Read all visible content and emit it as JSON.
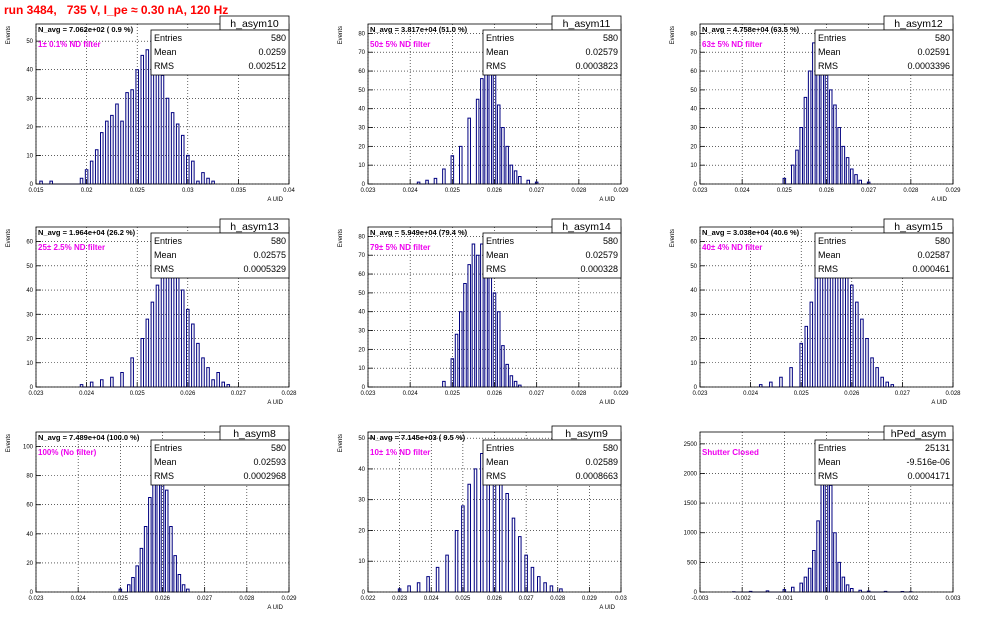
{
  "page_title": "run 3484,   735 V, I_pe ≈ 0.30 nA, 120 Hz",
  "colors": {
    "title": "#ff0000",
    "annotation": "#ee00ee",
    "histogram": "#000080",
    "frame": "#000000"
  },
  "chart_data": [
    {
      "type": "histogram",
      "name": "h_asym10",
      "stats": {
        "entries_label": "Entries",
        "entries": "580",
        "mean_label": "Mean",
        "mean": "0.0259",
        "rms_label": "RMS",
        "rms": "0.002512"
      },
      "n_avg_text": "N_avg = 7.062e+02 ( 0.9 %)",
      "annotation": "1± 0.1% ND filter",
      "ylabel": "Events",
      "xlabel": "A UID",
      "xlim": [
        0.015,
        0.04
      ],
      "xticks": [
        "0.015",
        "0.02",
        "0.025",
        "0.03",
        "0.035",
        "0.04"
      ],
      "ylim": [
        0,
        56
      ],
      "yticks": [
        "0",
        "10",
        "20",
        "30",
        "40",
        "50"
      ],
      "grid": true,
      "bins": [
        [
          0.0155,
          1
        ],
        [
          0.0165,
          1
        ],
        [
          0.0195,
          2
        ],
        [
          0.02,
          5
        ],
        [
          0.0205,
          8
        ],
        [
          0.021,
          12
        ],
        [
          0.0215,
          18
        ],
        [
          0.022,
          22
        ],
        [
          0.0225,
          24
        ],
        [
          0.023,
          28
        ],
        [
          0.0235,
          22
        ],
        [
          0.024,
          32
        ],
        [
          0.0245,
          33
        ],
        [
          0.025,
          40
        ],
        [
          0.0255,
          45
        ],
        [
          0.026,
          47
        ],
        [
          0.0265,
          52
        ],
        [
          0.027,
          42
        ],
        [
          0.0275,
          38
        ],
        [
          0.028,
          30
        ],
        [
          0.0285,
          25
        ],
        [
          0.029,
          21
        ],
        [
          0.0295,
          17
        ],
        [
          0.03,
          10
        ],
        [
          0.0305,
          8
        ],
        [
          0.031,
          1
        ],
        [
          0.0315,
          4
        ],
        [
          0.032,
          2
        ],
        [
          0.0325,
          1
        ]
      ]
    },
    {
      "type": "histogram",
      "name": "h_asym11",
      "stats": {
        "entries_label": "Entries",
        "entries": "580",
        "mean_label": "Mean",
        "mean": "0.02579",
        "rms_label": "RMS",
        "rms": "0.0003823"
      },
      "n_avg_text": "N_avg = 3.817e+04 (51.0 %)",
      "annotation": "50± 5% ND filter",
      "ylabel": "Events",
      "xlabel": "A UID",
      "xlim": [
        0.023,
        0.029
      ],
      "xticks": [
        "0.023",
        "0.024",
        "0.025",
        "0.026",
        "0.027",
        "0.028",
        "0.029"
      ],
      "ylim": [
        0,
        85
      ],
      "yticks": [
        "0",
        "10",
        "20",
        "30",
        "40",
        "50",
        "60",
        "70",
        "80"
      ],
      "grid": true,
      "bins": [
        [
          0.0242,
          1
        ],
        [
          0.0244,
          2
        ],
        [
          0.0246,
          3
        ],
        [
          0.0248,
          8
        ],
        [
          0.025,
          15
        ],
        [
          0.0252,
          20
        ],
        [
          0.0254,
          35
        ],
        [
          0.0256,
          45
        ],
        [
          0.0257,
          56
        ],
        [
          0.0258,
          75
        ],
        [
          0.0259,
          80
        ],
        [
          0.026,
          60
        ],
        [
          0.0261,
          42
        ],
        [
          0.0262,
          30
        ],
        [
          0.0263,
          20
        ],
        [
          0.0264,
          10
        ],
        [
          0.0265,
          7
        ],
        [
          0.0266,
          4
        ],
        [
          0.0268,
          2
        ],
        [
          0.027,
          1
        ]
      ]
    },
    {
      "type": "histogram",
      "name": "h_asym12",
      "stats": {
        "entries_label": "Entries",
        "entries": "580",
        "mean_label": "Mean",
        "mean": "0.02591",
        "rms_label": "RMS",
        "rms": "0.0003396"
      },
      "n_avg_text": "N_avg = 4.758e+04 (63.5 %)",
      "annotation": "63± 5% ND filter",
      "ylabel": "Events",
      "xlabel": "A UID",
      "xlim": [
        0.023,
        0.029
      ],
      "xticks": [
        "0.023",
        "0.024",
        "0.025",
        "0.026",
        "0.027",
        "0.028",
        "0.029"
      ],
      "ylim": [
        0,
        85
      ],
      "yticks": [
        "0",
        "10",
        "20",
        "30",
        "40",
        "50",
        "60",
        "70",
        "80"
      ],
      "grid": true,
      "bins": [
        [
          0.025,
          3
        ],
        [
          0.0252,
          10
        ],
        [
          0.0253,
          18
        ],
        [
          0.0254,
          30
        ],
        [
          0.0255,
          46
        ],
        [
          0.0256,
          60
        ],
        [
          0.0257,
          75
        ],
        [
          0.0258,
          80
        ],
        [
          0.0259,
          72
        ],
        [
          0.026,
          62
        ],
        [
          0.0261,
          50
        ],
        [
          0.0262,
          42
        ],
        [
          0.0263,
          30
        ],
        [
          0.0264,
          20
        ],
        [
          0.0265,
          14
        ],
        [
          0.0266,
          8
        ],
        [
          0.0267,
          5
        ],
        [
          0.0268,
          2
        ],
        [
          0.027,
          1
        ]
      ]
    },
    {
      "type": "histogram",
      "name": "h_asym13",
      "stats": {
        "entries_label": "Entries",
        "entries": "580",
        "mean_label": "Mean",
        "mean": "0.02575",
        "rms_label": "RMS",
        "rms": "0.0005329"
      },
      "n_avg_text": "N_avg = 1.964e+04 (26.2 %)",
      "annotation": "25± 2.5% ND filter",
      "ylabel": "Events",
      "xlabel": "A UID",
      "xlim": [
        0.023,
        0.028
      ],
      "xticks": [
        "0.023",
        "0.024",
        "0.025",
        "0.026",
        "0.027",
        "0.028"
      ],
      "ylim": [
        0,
        66
      ],
      "yticks": [
        "0",
        "10",
        "20",
        "30",
        "40",
        "50",
        "60"
      ],
      "grid": true,
      "bins": [
        [
          0.0239,
          1
        ],
        [
          0.0241,
          2
        ],
        [
          0.0243,
          3
        ],
        [
          0.0245,
          4
        ],
        [
          0.0247,
          6
        ],
        [
          0.0249,
          12
        ],
        [
          0.0251,
          20
        ],
        [
          0.0252,
          28
        ],
        [
          0.0253,
          35
        ],
        [
          0.0254,
          42
        ],
        [
          0.0255,
          52
        ],
        [
          0.0256,
          58
        ],
        [
          0.0257,
          62
        ],
        [
          0.0258,
          48
        ],
        [
          0.0259,
          40
        ],
        [
          0.026,
          32
        ],
        [
          0.0261,
          26
        ],
        [
          0.0262,
          18
        ],
        [
          0.0263,
          12
        ],
        [
          0.0264,
          8
        ],
        [
          0.0265,
          3
        ],
        [
          0.0266,
          6
        ],
        [
          0.0267,
          2
        ],
        [
          0.0268,
          1
        ]
      ]
    },
    {
      "type": "histogram",
      "name": "h_asym14",
      "stats": {
        "entries_label": "Entries",
        "entries": "580",
        "mean_label": "Mean",
        "mean": "0.02579",
        "rms_label": "RMS",
        "rms": "0.000328"
      },
      "n_avg_text": "N_avg = 5.949e+04 (79.4 %)",
      "annotation": "79± 5% ND filter",
      "ylabel": "Events",
      "xlabel": "A UID",
      "xlim": [
        0.023,
        0.029
      ],
      "xticks": [
        "0.023",
        "0.024",
        "0.025",
        "0.026",
        "0.027",
        "0.028",
        "0.029"
      ],
      "ylim": [
        0,
        85
      ],
      "yticks": [
        "0",
        "10",
        "20",
        "30",
        "40",
        "50",
        "60",
        "70",
        "80"
      ],
      "grid": true,
      "bins": [
        [
          0.0248,
          3
        ],
        [
          0.025,
          15
        ],
        [
          0.0251,
          28
        ],
        [
          0.0252,
          40
        ],
        [
          0.0253,
          55
        ],
        [
          0.0254,
          65
        ],
        [
          0.0255,
          76
        ],
        [
          0.0256,
          70
        ],
        [
          0.0257,
          76
        ],
        [
          0.0258,
          72
        ],
        [
          0.0259,
          60
        ],
        [
          0.026,
          50
        ],
        [
          0.0261,
          40
        ],
        [
          0.0262,
          22
        ],
        [
          0.0263,
          12
        ],
        [
          0.0264,
          6
        ],
        [
          0.0265,
          3
        ],
        [
          0.0266,
          1
        ]
      ]
    },
    {
      "type": "histogram",
      "name": "h_asym15",
      "stats": {
        "entries_label": "Entries",
        "entries": "580",
        "mean_label": "Mean",
        "mean": "0.02587",
        "rms_label": "RMS",
        "rms": "0.000461"
      },
      "n_avg_text": "N_avg = 3.038e+04 (40.6 %)",
      "annotation": "40± 4% ND filter",
      "ylabel": "Events",
      "xlabel": "A UID",
      "xlim": [
        0.023,
        0.028
      ],
      "xticks": [
        "0.023",
        "0.024",
        "0.025",
        "0.026",
        "0.027",
        "0.028"
      ],
      "ylim": [
        0,
        66
      ],
      "yticks": [
        "0",
        "10",
        "20",
        "30",
        "40",
        "50",
        "60"
      ],
      "grid": true,
      "bins": [
        [
          0.0242,
          1
        ],
        [
          0.0244,
          2
        ],
        [
          0.0246,
          4
        ],
        [
          0.0248,
          8
        ],
        [
          0.025,
          18
        ],
        [
          0.0251,
          25
        ],
        [
          0.0252,
          35
        ],
        [
          0.0253,
          45
        ],
        [
          0.0254,
          58
        ],
        [
          0.0255,
          48
        ],
        [
          0.0256,
          58
        ],
        [
          0.0257,
          62
        ],
        [
          0.0258,
          58
        ],
        [
          0.0259,
          48
        ],
        [
          0.026,
          42
        ],
        [
          0.0261,
          35
        ],
        [
          0.0262,
          28
        ],
        [
          0.0263,
          20
        ],
        [
          0.0264,
          12
        ],
        [
          0.0265,
          8
        ],
        [
          0.0266,
          4
        ],
        [
          0.0267,
          2
        ],
        [
          0.0268,
          1
        ]
      ]
    },
    {
      "type": "histogram",
      "name": "h_asym8",
      "stats": {
        "entries_label": "Entries",
        "entries": "580",
        "mean_label": "Mean",
        "mean": "0.02593",
        "rms_label": "RMS",
        "rms": "0.0002968"
      },
      "n_avg_text": "N_avg = 7.489e+04 (100.0 %)",
      "annotation": "100% (No filter)",
      "ylabel": "Events",
      "xlabel": "A UID",
      "xlim": [
        0.023,
        0.029
      ],
      "xticks": [
        "0.023",
        "0.024",
        "0.025",
        "0.026",
        "0.027",
        "0.028",
        "0.029"
      ],
      "ylim": [
        0,
        110
      ],
      "yticks": [
        "0",
        "20",
        "40",
        "60",
        "80",
        "100"
      ],
      "grid": true,
      "bins": [
        [
          0.025,
          2
        ],
        [
          0.0252,
          5
        ],
        [
          0.0253,
          10
        ],
        [
          0.0254,
          18
        ],
        [
          0.0255,
          30
        ],
        [
          0.0256,
          45
        ],
        [
          0.0257,
          65
        ],
        [
          0.0258,
          90
        ],
        [
          0.0259,
          100
        ],
        [
          0.026,
          88
        ],
        [
          0.0261,
          70
        ],
        [
          0.0262,
          45
        ],
        [
          0.0263,
          25
        ],
        [
          0.0264,
          12
        ],
        [
          0.0265,
          5
        ],
        [
          0.0266,
          2
        ]
      ]
    },
    {
      "type": "histogram",
      "name": "h_asym9",
      "stats": {
        "entries_label": "Entries",
        "entries": "580",
        "mean_label": "Mean",
        "mean": "0.02589",
        "rms_label": "RMS",
        "rms": "0.0008663"
      },
      "n_avg_text": "N_avg = 7.145e+03 ( 9.5 %)",
      "annotation": "10± 1% ND filter",
      "ylabel": "Events",
      "xlabel": "A UID",
      "xlim": [
        0.022,
        0.03
      ],
      "xticks": [
        "0.022",
        "0.023",
        "0.024",
        "0.025",
        "0.026",
        "0.027",
        "0.028",
        "0.029",
        "0.03"
      ],
      "ylim": [
        0,
        52
      ],
      "yticks": [
        "0",
        "10",
        "20",
        "30",
        "40",
        "50"
      ],
      "grid": true,
      "bins": [
        [
          0.023,
          1
        ],
        [
          0.0233,
          2
        ],
        [
          0.0236,
          3
        ],
        [
          0.0239,
          5
        ],
        [
          0.0242,
          8
        ],
        [
          0.0245,
          12
        ],
        [
          0.0248,
          20
        ],
        [
          0.025,
          28
        ],
        [
          0.0252,
          35
        ],
        [
          0.0254,
          40
        ],
        [
          0.0256,
          45
        ],
        [
          0.0258,
          47
        ],
        [
          0.026,
          40
        ],
        [
          0.0262,
          38
        ],
        [
          0.0264,
          32
        ],
        [
          0.0266,
          24
        ],
        [
          0.0268,
          18
        ],
        [
          0.027,
          12
        ],
        [
          0.0272,
          8
        ],
        [
          0.0274,
          5
        ],
        [
          0.0276,
          3
        ],
        [
          0.0278,
          2
        ],
        [
          0.0281,
          1
        ]
      ]
    },
    {
      "type": "histogram",
      "name": "hPed_asym",
      "stats": {
        "entries_label": "Entries",
        "entries": "25131",
        "mean_label": "Mean",
        "mean": "-9.516e-06",
        "rms_label": "RMS",
        "rms": "0.0004171"
      },
      "n_avg_text": "",
      "annotation": "Shutter Closed",
      "ylabel": "",
      "xlabel": "",
      "xlim": [
        -0.003,
        0.003
      ],
      "xticks": [
        "-0.003",
        "-0.002",
        "-0.001",
        "0",
        "0.001",
        "0.002",
        "0.003"
      ],
      "ylim": [
        0,
        2700
      ],
      "yticks": [
        "0",
        "500",
        "1000",
        "1500",
        "2000",
        "2500"
      ],
      "grid": true,
      "bins": [
        [
          -0.0022,
          5
        ],
        [
          -0.0018,
          10
        ],
        [
          -0.0014,
          20
        ],
        [
          -0.001,
          40
        ],
        [
          -0.0008,
          80
        ],
        [
          -0.0006,
          150
        ],
        [
          -0.0005,
          250
        ],
        [
          -0.0004,
          400
        ],
        [
          -0.0003,
          700
        ],
        [
          -0.0002,
          1200
        ],
        [
          -0.0001,
          2000
        ],
        [
          0.0,
          2500
        ],
        [
          0.0001,
          1800
        ],
        [
          0.0002,
          1000
        ],
        [
          0.0003,
          500
        ],
        [
          0.0004,
          250
        ],
        [
          0.0005,
          120
        ],
        [
          0.0006,
          60
        ],
        [
          0.0008,
          30
        ],
        [
          0.001,
          15
        ],
        [
          0.0014,
          10
        ],
        [
          0.0018,
          8
        ],
        [
          0.002,
          5
        ]
      ]
    }
  ]
}
